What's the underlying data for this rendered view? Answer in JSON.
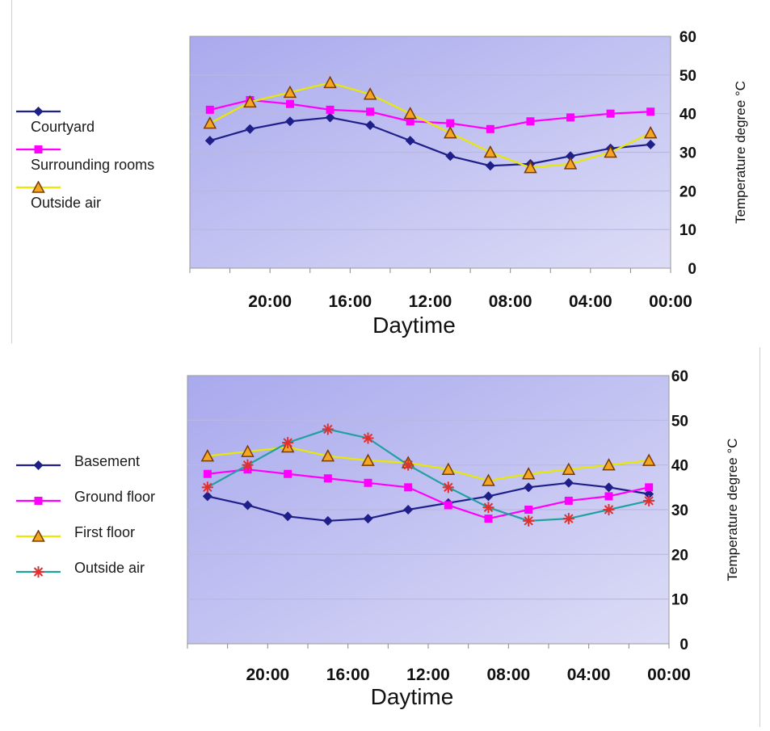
{
  "chart_data": [
    {
      "type": "line",
      "xlabel": "Daytime",
      "ylabel": "Temperature degree °C",
      "ylim": [
        0,
        60
      ],
      "yticks": [
        "0",
        "10",
        "20",
        "30",
        "40",
        "50",
        "60"
      ],
      "x_tick_labels": [
        "20:00",
        "16:00",
        "12:00",
        "08:00",
        "04:00",
        "00:00"
      ],
      "x": [
        "22:00",
        "20:00",
        "18:00",
        "16:00",
        "14:00",
        "12:00",
        "10:00",
        "08:00",
        "06:00",
        "04:00",
        "02:00",
        "00:00"
      ],
      "grid": true,
      "legend_position": "left",
      "series": [
        {
          "name": "Courtyard",
          "color": "#1f1f8a",
          "marker": "diamond",
          "values": [
            33,
            36,
            38,
            39,
            37,
            33,
            29,
            26.5,
            27,
            29,
            31,
            32
          ]
        },
        {
          "name": "Surrounding rooms",
          "color": "#ff00ff",
          "marker": "square",
          "values": [
            41,
            43.5,
            42.5,
            41,
            40.5,
            38,
            37.5,
            36,
            38,
            39,
            40,
            40.5
          ]
        },
        {
          "name": "Outside air",
          "color": "#e8e800",
          "marker": "triangle",
          "values": [
            37.5,
            43,
            45.5,
            48,
            45,
            40,
            35,
            30,
            26,
            27,
            30,
            35
          ]
        }
      ]
    },
    {
      "type": "line",
      "xlabel": "Daytime",
      "ylabel": "Temperature degree °C",
      "ylim": [
        0,
        60
      ],
      "yticks": [
        "0",
        "10",
        "20",
        "30",
        "40",
        "50",
        "60"
      ],
      "x_tick_labels": [
        "20:00",
        "16:00",
        "12:00",
        "08:00",
        "04:00",
        "00:00"
      ],
      "x": [
        "22:00",
        "20:00",
        "18:00",
        "16:00",
        "14:00",
        "12:00",
        "10:00",
        "08:00",
        "06:00",
        "04:00",
        "02:00",
        "00:00"
      ],
      "grid": true,
      "legend_position": "left",
      "series": [
        {
          "name": "Basement",
          "color": "#1f1f8a",
          "marker": "diamond",
          "values": [
            33,
            31,
            28.5,
            27.5,
            28,
            30,
            31.5,
            33,
            35,
            36,
            35,
            33.5
          ]
        },
        {
          "name": "Ground floor",
          "color": "#ff00ff",
          "marker": "square",
          "values": [
            38,
            39,
            38,
            37,
            36,
            35,
            31,
            28,
            30,
            32,
            33,
            35
          ]
        },
        {
          "name": "First floor",
          "color": "#e8e800",
          "marker": "triangle",
          "values": [
            42,
            43,
            44,
            42,
            41,
            40.5,
            39,
            36.5,
            38,
            39,
            40,
            41
          ]
        },
        {
          "name": "Outside air",
          "color": "#20a0a0",
          "marker": "star",
          "marker_color": "#e03030",
          "values": [
            35,
            40,
            45,
            48,
            46,
            40,
            35,
            30.5,
            27.5,
            28,
            30,
            32
          ]
        }
      ]
    }
  ]
}
